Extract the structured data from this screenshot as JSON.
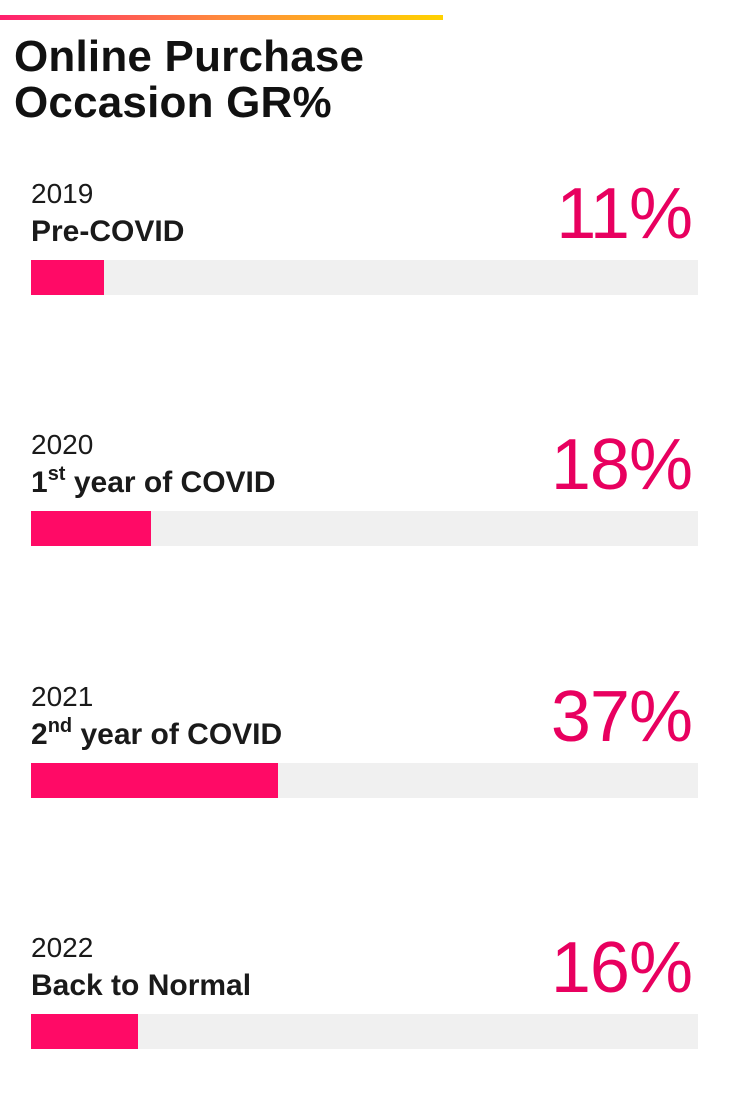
{
  "title_lines": [
    "Online Purchase",
    "Occasion GR%"
  ],
  "colors": {
    "bar": "#ff0a66",
    "value_text": "#e8005f",
    "track": "#f0f0f0",
    "accent_gradient": [
      "#ff1f6f",
      "#ff8a3d",
      "#ffd200"
    ]
  },
  "chart_data": {
    "type": "bar",
    "title": "Online Purchase Occasion GR%",
    "xlabel": "",
    "ylabel": "",
    "ylim": [
      0,
      100
    ],
    "categories": [
      "2019",
      "2020",
      "2021",
      "2022"
    ],
    "values": [
      11,
      18,
      37,
      16
    ]
  },
  "rows": [
    {
      "year": "2019",
      "label_main": "Pre-COVID",
      "label_sup": "",
      "label_rest": "",
      "value_text": "11%",
      "value": 11
    },
    {
      "year": "2020",
      "label_main": "1",
      "label_sup": "st",
      "label_rest": " year of COVID",
      "value_text": "18%",
      "value": 18
    },
    {
      "year": "2021",
      "label_main": "2",
      "label_sup": "nd",
      "label_rest": " year of COVID",
      "value_text": "37%",
      "value": 37
    },
    {
      "year": "2022",
      "label_main": "Back to Normal",
      "label_sup": "",
      "label_rest": "",
      "value_text": "16%",
      "value": 16
    }
  ]
}
